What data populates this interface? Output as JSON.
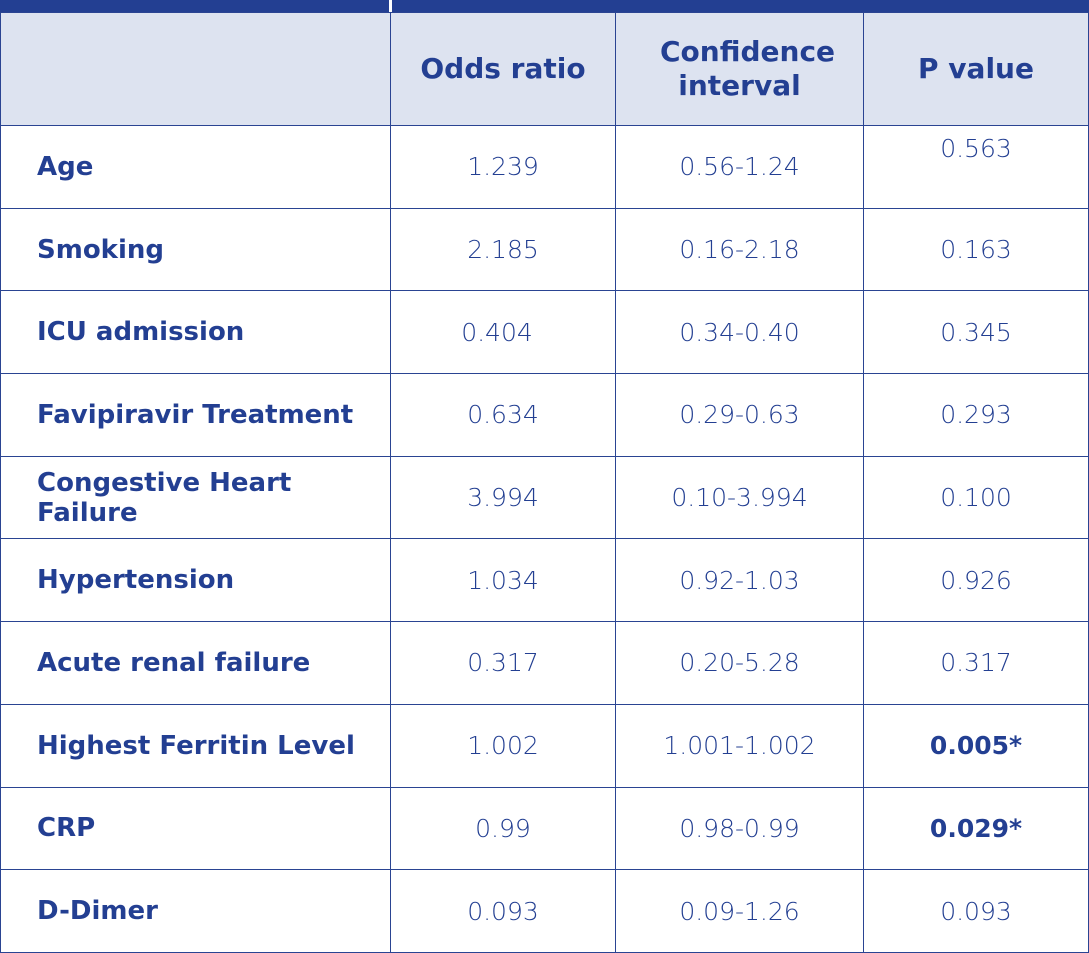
{
  "table": {
    "headers": [
      "",
      "Odds ratio",
      "Confidence interval",
      "P value"
    ],
    "rows": [
      {
        "variable": "Age",
        "odds_ratio": "1.239",
        "confidence_interval": "0.56-1.24",
        "p_value": "0.563",
        "significant": false
      },
      {
        "variable": "Smoking",
        "odds_ratio": "2.185",
        "confidence_interval": "0.16-2.18",
        "p_value": "0.163",
        "significant": false
      },
      {
        "variable": "ICU admission",
        "odds_ratio": "0.404",
        "confidence_interval": "0.34-0.40",
        "p_value": "0.345",
        "significant": false
      },
      {
        "variable": "Favipiravir Treatment",
        "odds_ratio": "0.634",
        "confidence_interval": "0.29-0.63",
        "p_value": "0.293",
        "significant": false
      },
      {
        "variable": "Congestive Heart Failure",
        "odds_ratio": "3.994",
        "confidence_interval": "0.10-3.994",
        "p_value": "0.100",
        "significant": false
      },
      {
        "variable": "Hypertension",
        "odds_ratio": "1.034",
        "confidence_interval": "0.92-1.03",
        "p_value": "0.926",
        "significant": false
      },
      {
        "variable": "Acute renal failure",
        "odds_ratio": "0.317",
        "confidence_interval": "0.20-5.28",
        "p_value": "0.317",
        "significant": false
      },
      {
        "variable": "Highest Ferritin Level",
        "odds_ratio": "1.002",
        "confidence_interval": "1.001-1.002",
        "p_value": "0.005*",
        "significant": true
      },
      {
        "variable": "CRP",
        "odds_ratio": "0.99",
        "confidence_interval": "0.98-0.99",
        "p_value": "0.029*",
        "significant": true
      },
      {
        "variable": "D-Dimer",
        "odds_ratio": "0.093",
        "confidence_interval": "0.09-1.26",
        "p_value": "0.093",
        "significant": false
      }
    ]
  },
  "colors": {
    "text": "#233f92",
    "border": "#2a4492",
    "header_background": "#dde3f0",
    "top_bar": "#233f92"
  }
}
